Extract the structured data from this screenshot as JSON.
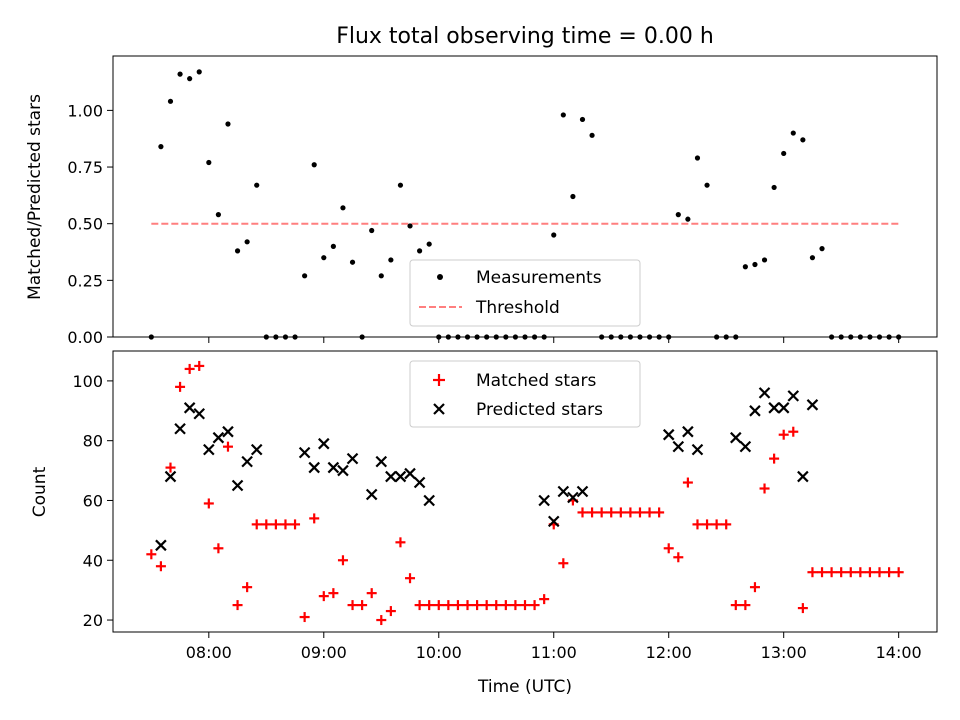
{
  "title": "Flux total observing time = 0.00 h",
  "chart_data": [
    {
      "type": "scatter",
      "ylabel": "Matched/Predicted stars",
      "ylim": [
        0,
        1.24
      ],
      "yticks": [
        "0.00",
        "0.25",
        "0.50",
        "0.75",
        "1.00"
      ],
      "legend_position": "lower center",
      "threshold": {
        "name": "Threshold",
        "value": 0.5,
        "x_start": "07:30",
        "x_end": "14:00",
        "color": "#ff7f7f"
      },
      "series": [
        {
          "name": "Measurements",
          "color": "#000000",
          "x": [
            "07:30",
            "07:35",
            "07:40",
            "07:45",
            "07:50",
            "07:55",
            "08:00",
            "08:05",
            "08:10",
            "08:15",
            "08:20",
            "08:25",
            "08:30",
            "08:35",
            "08:40",
            "08:45",
            "08:50",
            "08:55",
            "09:00",
            "09:05",
            "09:10",
            "09:15",
            "09:20",
            "09:25",
            "09:30",
            "09:35",
            "09:40",
            "09:45",
            "09:50",
            "09:55",
            "10:00",
            "10:05",
            "10:10",
            "10:15",
            "10:20",
            "10:25",
            "10:30",
            "10:35",
            "10:40",
            "10:45",
            "10:50",
            "10:55",
            "11:00",
            "11:05",
            "11:10",
            "11:15",
            "11:20",
            "11:25",
            "11:30",
            "11:35",
            "11:40",
            "11:45",
            "11:50",
            "11:55",
            "12:00",
            "12:05",
            "12:10",
            "12:15",
            "12:20",
            "12:25",
            "12:30",
            "12:35",
            "12:40",
            "12:45",
            "12:50",
            "12:55",
            "13:00",
            "13:05",
            "13:10",
            "13:15",
            "13:20",
            "13:25",
            "13:30",
            "13:35",
            "13:40",
            "13:45",
            "13:50",
            "13:55",
            "14:00"
          ],
          "y": [
            0.0,
            0.84,
            1.04,
            1.16,
            1.14,
            1.17,
            0.77,
            0.54,
            0.94,
            0.38,
            0.42,
            0.67,
            0.0,
            0.0,
            0.0,
            0.0,
            0.27,
            0.76,
            0.35,
            0.4,
            0.57,
            0.33,
            0.0,
            0.47,
            0.27,
            0.34,
            0.67,
            0.49,
            0.38,
            0.41,
            0.0,
            0.0,
            0.0,
            0.0,
            0.0,
            0.0,
            0.0,
            0.0,
            0.0,
            0.0,
            0.0,
            0.0,
            0.45,
            0.98,
            0.62,
            0.96,
            0.89,
            0.0,
            0.0,
            0.0,
            0.0,
            0.0,
            0.0,
            0.0,
            0.0,
            0.54,
            0.52,
            0.79,
            0.67,
            0.0,
            0.0,
            0.0,
            0.31,
            0.32,
            0.34,
            0.66,
            0.81,
            0.9,
            0.87,
            0.35,
            0.39,
            0.0,
            0.0,
            0.0,
            0.0,
            0.0,
            0.0,
            0.0,
            0.0
          ]
        }
      ]
    },
    {
      "type": "scatter",
      "xlabel": "Time (UTC)",
      "ylabel": "Count",
      "ylim": [
        16,
        110
      ],
      "yticks": [
        "20",
        "40",
        "60",
        "80",
        "100"
      ],
      "legend_position": "upper center",
      "series": [
        {
          "name": "Matched stars",
          "color": "#ff0000",
          "x": [
            "07:30",
            "07:35",
            "07:40",
            "07:45",
            "07:50",
            "07:55",
            "08:00",
            "08:05",
            "08:10",
            "08:15",
            "08:20",
            "08:25",
            "08:30",
            "08:35",
            "08:40",
            "08:45",
            "08:50",
            "08:55",
            "09:00",
            "09:05",
            "09:10",
            "09:15",
            "09:20",
            "09:25",
            "09:30",
            "09:35",
            "09:40",
            "09:45",
            "09:50",
            "09:55",
            "10:00",
            "10:05",
            "10:10",
            "10:15",
            "10:20",
            "10:25",
            "10:30",
            "10:35",
            "10:40",
            "10:45",
            "10:50",
            "10:55",
            "11:00",
            "11:05",
            "11:10",
            "11:15",
            "11:20",
            "11:25",
            "11:30",
            "11:35",
            "11:40",
            "11:45",
            "11:50",
            "11:55",
            "12:00",
            "12:05",
            "12:10",
            "12:15",
            "12:20",
            "12:25",
            "12:30",
            "12:35",
            "12:40",
            "12:45",
            "12:50",
            "12:55",
            "13:00",
            "13:05",
            "13:10",
            "13:15",
            "13:20",
            "13:25",
            "13:30",
            "13:35",
            "13:40",
            "13:45",
            "13:50",
            "13:55",
            "14:00"
          ],
          "y": [
            42,
            38,
            71,
            98,
            104,
            105,
            59,
            44,
            78,
            25,
            31,
            52,
            52,
            52,
            52,
            52,
            21,
            54,
            28,
            29,
            40,
            25,
            25,
            29,
            20,
            23,
            46,
            34,
            25,
            25,
            25,
            25,
            25,
            25,
            25,
            25,
            25,
            25,
            25,
            25,
            25,
            27,
            52,
            39,
            60,
            56,
            56,
            56,
            56,
            56,
            56,
            56,
            56,
            56,
            44,
            41,
            66,
            52,
            52,
            52,
            52,
            25,
            25,
            31,
            64,
            74,
            82,
            83,
            24,
            36,
            36,
            36,
            36,
            36,
            36,
            36,
            36,
            36,
            36
          ]
        },
        {
          "name": "Predicted stars",
          "color": "#000000",
          "x": [
            "07:35",
            "07:40",
            "07:45",
            "07:50",
            "07:55",
            "08:00",
            "08:05",
            "08:10",
            "08:15",
            "08:20",
            "08:25",
            "08:50",
            "08:55",
            "09:00",
            "09:05",
            "09:10",
            "09:15",
            "09:25",
            "09:30",
            "09:35",
            "09:40",
            "09:45",
            "09:50",
            "09:55",
            "10:55",
            "11:00",
            "11:05",
            "11:10",
            "11:15",
            "12:00",
            "12:05",
            "12:10",
            "12:15",
            "12:35",
            "12:40",
            "12:45",
            "12:50",
            "12:55",
            "13:00",
            "13:05",
            "13:10",
            "13:15"
          ],
          "y": [
            45,
            68,
            84,
            91,
            89,
            77,
            81,
            83,
            65,
            73,
            77,
            76,
            71,
            79,
            71,
            70,
            74,
            62,
            73,
            68,
            68,
            69,
            66,
            60,
            60,
            53,
            63,
            61,
            63,
            82,
            78,
            83,
            77,
            81,
            78,
            90,
            96,
            91,
            91,
            95,
            68,
            92
          ]
        }
      ],
      "xticks": [
        "08:00",
        "09:00",
        "10:00",
        "11:00",
        "12:00",
        "13:00",
        "14:00"
      ]
    }
  ]
}
